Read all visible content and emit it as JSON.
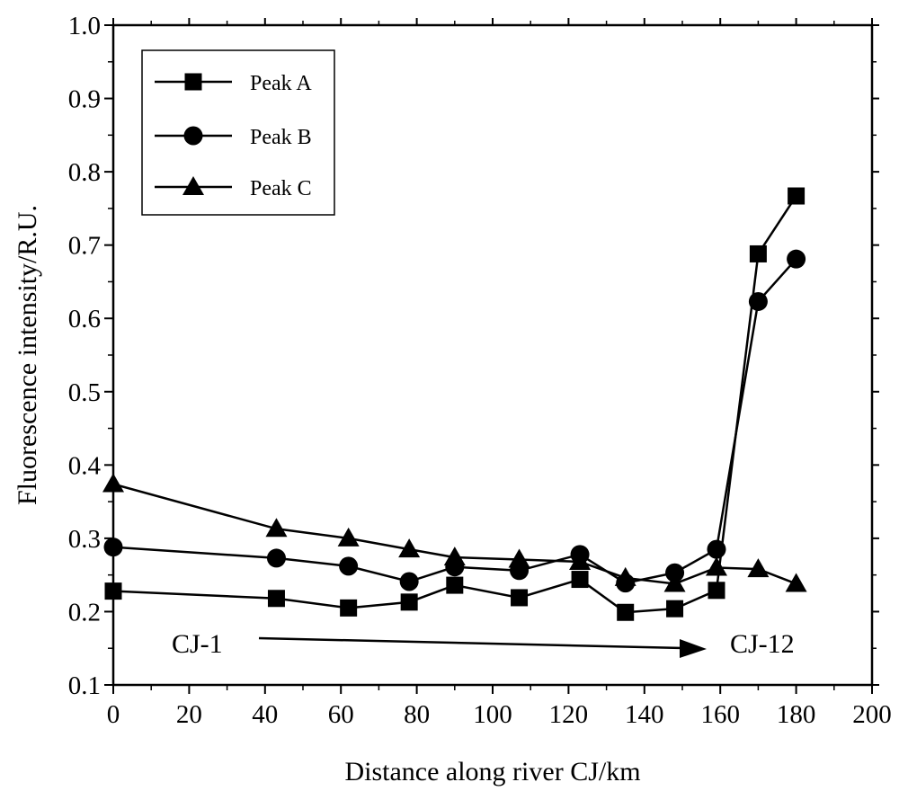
{
  "chart_data": {
    "type": "line",
    "title": "",
    "xlabel": "Distance along river CJ/km",
    "ylabel": "Fluorescence intensity/R.U.",
    "xlim": [
      0,
      200
    ],
    "ylim": [
      0.1,
      1.0
    ],
    "xticks": [
      0,
      20,
      40,
      60,
      80,
      100,
      120,
      140,
      160,
      180,
      200
    ],
    "yticks": [
      0.1,
      0.2,
      0.3,
      0.4,
      0.5,
      0.6,
      0.7,
      0.8,
      0.9,
      1.0
    ],
    "xtick_labels": [
      "0",
      "20",
      "40",
      "60",
      "80",
      "100",
      "120",
      "140",
      "160",
      "180",
      "200"
    ],
    "ytick_labels": [
      "0.1",
      "0.2",
      "0.3",
      "0.4",
      "0.5",
      "0.6",
      "0.7",
      "0.8",
      "0.9",
      "1.0"
    ],
    "grid": false,
    "legend_position": "top-left",
    "series": [
      {
        "name": "Peak A",
        "marker": "square",
        "color": "#000000",
        "x": [
          0,
          43,
          62,
          78,
          90,
          107,
          123,
          135,
          148,
          159,
          170,
          180
        ],
        "y": [
          0.228,
          0.218,
          0.205,
          0.213,
          0.236,
          0.219,
          0.244,
          0.199,
          0.204,
          0.229,
          0.688,
          0.767
        ]
      },
      {
        "name": "Peak B",
        "marker": "circle",
        "color": "#000000",
        "x": [
          0,
          43,
          62,
          78,
          90,
          107,
          123,
          135,
          148,
          159,
          170,
          180
        ],
        "y": [
          0.288,
          0.273,
          0.262,
          0.241,
          0.261,
          0.256,
          0.278,
          0.239,
          0.253,
          0.285,
          0.623,
          0.681
        ]
      },
      {
        "name": "Peak C",
        "marker": "triangle",
        "color": "#000000",
        "x": [
          0,
          43,
          62,
          78,
          90,
          107,
          123,
          135,
          148,
          159,
          170,
          180
        ],
        "y": [
          0.374,
          0.313,
          0.3,
          0.285,
          0.274,
          0.271,
          0.268,
          0.246,
          0.238,
          0.26,
          0.258,
          0.238
        ]
      }
    ],
    "annotations": {
      "start_label": "CJ-1",
      "end_label": "CJ-12"
    }
  }
}
